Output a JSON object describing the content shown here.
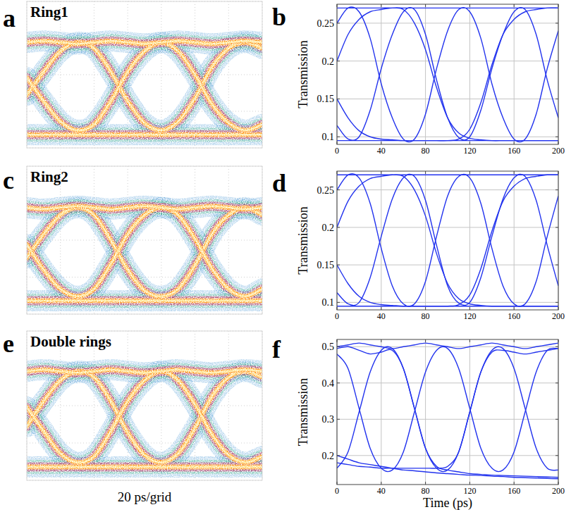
{
  "chart_data": [
    {
      "type": "eye_diagram",
      "panel_label": "a",
      "title": "Ring1",
      "x": [
        0,
        10,
        20,
        30,
        40,
        50,
        60,
        70,
        80,
        90,
        100,
        110,
        120,
        130,
        140
      ],
      "series": [
        {
          "values": [
            0.36,
            0.52,
            0.66,
            0.72,
            0.68,
            0.52,
            0.32,
            0.17,
            0.12,
            0.18,
            0.34,
            0.55,
            0.68,
            0.72,
            0.68
          ]
        },
        {
          "values": [
            0.48,
            0.32,
            0.18,
            0.12,
            0.16,
            0.32,
            0.52,
            0.66,
            0.72,
            0.66,
            0.5,
            0.3,
            0.17,
            0.12,
            0.16
          ]
        },
        {
          "values": [
            0.72,
            0.73,
            0.72,
            0.71,
            0.72,
            0.73,
            0.72,
            0.71,
            0.72,
            0.73,
            0.72,
            0.71,
            0.72,
            0.73,
            0.72
          ]
        },
        {
          "values": [
            0.09,
            0.09,
            0.09,
            0.09,
            0.09,
            0.09,
            0.09,
            0.09,
            0.09,
            0.09,
            0.09,
            0.09,
            0.09,
            0.09,
            0.09
          ]
        }
      ],
      "xlim": [
        0,
        140
      ],
      "ylim": [
        0,
        1
      ],
      "xticks": [
        0,
        20,
        40,
        60,
        80,
        100,
        120,
        140
      ],
      "yticks": [
        0,
        0.25,
        0.5,
        0.75,
        1
      ],
      "grid": true,
      "tick_labels": false,
      "color": "#ff9a1f"
    },
    {
      "type": "eye_diagram",
      "panel_label": "b",
      "ylabel": "Transmission",
      "x": [
        0,
        10,
        20,
        30,
        40,
        50,
        60,
        70,
        80,
        90,
        100,
        110,
        120,
        130,
        140,
        150,
        160,
        170,
        180,
        190,
        200
      ],
      "series": [
        {
          "values": [
            0.25,
            0.27,
            0.265,
            0.23,
            0.17,
            0.125,
            0.097,
            0.097,
            0.13,
            0.19,
            0.24,
            0.268,
            0.265,
            0.23,
            0.17,
            0.125,
            0.097,
            0.097,
            0.13,
            0.19,
            0.24
          ]
        },
        {
          "values": [
            0.115,
            0.097,
            0.1,
            0.135,
            0.19,
            0.235,
            0.265,
            0.268,
            0.235,
            0.175,
            0.125,
            0.099,
            0.1,
            0.135,
            0.19,
            0.235,
            0.265,
            0.268,
            0.235,
            0.175,
            0.125
          ]
        },
        {
          "values": [
            0.2,
            0.235,
            0.255,
            0.265,
            0.268,
            0.27,
            0.27,
            0.27,
            0.27,
            0.27,
            0.27,
            0.27,
            0.27,
            0.27,
            0.27,
            0.27,
            0.27,
            0.27,
            0.27,
            0.27,
            0.27
          ]
        },
        {
          "values": [
            0.15,
            0.125,
            0.108,
            0.1,
            0.097,
            0.096,
            0.095,
            0.095,
            0.095,
            0.095,
            0.095,
            0.095,
            0.095,
            0.095,
            0.095,
            0.095,
            0.095,
            0.095,
            0.095,
            0.095,
            0.095
          ]
        },
        {
          "values": [
            0.27,
            0.27,
            0.27,
            0.27,
            0.27,
            0.27,
            0.268,
            0.25,
            0.215,
            0.165,
            0.125,
            0.105,
            0.098,
            0.096,
            0.095,
            0.095,
            0.095,
            0.095,
            0.095,
            0.095,
            0.095
          ]
        },
        {
          "values": [
            0.095,
            0.095,
            0.095,
            0.095,
            0.095,
            0.095,
            0.095,
            0.095,
            0.095,
            0.095,
            0.095,
            0.097,
            0.11,
            0.145,
            0.195,
            0.235,
            0.255,
            0.265,
            0.268,
            0.27,
            0.27
          ]
        }
      ],
      "xlim": [
        0,
        200
      ],
      "ylim": [
        0.09,
        0.275
      ],
      "xticks": [
        0,
        40,
        80,
        120,
        160,
        200
      ],
      "yticks": [
        0.1,
        0.15,
        0.2,
        0.25
      ],
      "grid": true,
      "color": "#2233ee"
    },
    {
      "type": "eye_diagram",
      "panel_label": "c",
      "title": "Ring2",
      "x": [
        0,
        10,
        20,
        30,
        40,
        50,
        60,
        70,
        80,
        90,
        100,
        110,
        120,
        130,
        140
      ],
      "series": [
        {
          "values": [
            0.38,
            0.54,
            0.67,
            0.72,
            0.67,
            0.5,
            0.3,
            0.16,
            0.12,
            0.17,
            0.33,
            0.54,
            0.67,
            0.72,
            0.67
          ]
        },
        {
          "values": [
            0.47,
            0.3,
            0.17,
            0.12,
            0.17,
            0.34,
            0.54,
            0.67,
            0.72,
            0.67,
            0.51,
            0.31,
            0.17,
            0.12,
            0.17
          ]
        },
        {
          "values": [
            0.72,
            0.71,
            0.72,
            0.73,
            0.72,
            0.71,
            0.72,
            0.73,
            0.72,
            0.71,
            0.72,
            0.73,
            0.72,
            0.71,
            0.72
          ]
        },
        {
          "values": [
            0.09,
            0.09,
            0.09,
            0.09,
            0.09,
            0.09,
            0.09,
            0.09,
            0.09,
            0.09,
            0.09,
            0.09,
            0.09,
            0.09,
            0.09
          ]
        }
      ],
      "xlim": [
        0,
        140
      ],
      "ylim": [
        0,
        1
      ],
      "xticks": [
        0,
        20,
        40,
        60,
        80,
        100,
        120,
        140
      ],
      "yticks": [
        0,
        0.25,
        0.5,
        0.75,
        1
      ],
      "grid": true,
      "tick_labels": false,
      "color": "#ff9a1f"
    },
    {
      "type": "eye_diagram",
      "panel_label": "d",
      "ylabel": "Transmission",
      "x": [
        0,
        10,
        20,
        30,
        40,
        50,
        60,
        70,
        80,
        90,
        100,
        110,
        120,
        130,
        140,
        150,
        160,
        170,
        180,
        190,
        200
      ],
      "series": [
        {
          "values": [
            0.25,
            0.27,
            0.266,
            0.232,
            0.172,
            0.122,
            0.098,
            0.098,
            0.128,
            0.188,
            0.242,
            0.268,
            0.266,
            0.232,
            0.172,
            0.122,
            0.098,
            0.098,
            0.128,
            0.188,
            0.242
          ]
        },
        {
          "values": [
            0.113,
            0.098,
            0.1,
            0.133,
            0.188,
            0.238,
            0.266,
            0.268,
            0.236,
            0.176,
            0.122,
            0.099,
            0.1,
            0.133,
            0.188,
            0.238,
            0.266,
            0.268,
            0.236,
            0.176,
            0.122
          ]
        },
        {
          "values": [
            0.2,
            0.235,
            0.255,
            0.265,
            0.268,
            0.27,
            0.27,
            0.27,
            0.27,
            0.27,
            0.27,
            0.27,
            0.27,
            0.27,
            0.27,
            0.27,
            0.27,
            0.27,
            0.27,
            0.27,
            0.27
          ]
        },
        {
          "values": [
            0.15,
            0.125,
            0.108,
            0.1,
            0.097,
            0.096,
            0.095,
            0.095,
            0.095,
            0.095,
            0.095,
            0.095,
            0.095,
            0.095,
            0.095,
            0.095,
            0.095,
            0.095,
            0.095,
            0.095,
            0.095
          ]
        },
        {
          "values": [
            0.27,
            0.27,
            0.27,
            0.27,
            0.27,
            0.27,
            0.268,
            0.25,
            0.215,
            0.165,
            0.125,
            0.105,
            0.098,
            0.096,
            0.095,
            0.095,
            0.095,
            0.095,
            0.095,
            0.095,
            0.095
          ]
        },
        {
          "values": [
            0.095,
            0.095,
            0.095,
            0.095,
            0.095,
            0.095,
            0.095,
            0.095,
            0.095,
            0.095,
            0.095,
            0.097,
            0.11,
            0.145,
            0.195,
            0.235,
            0.255,
            0.265,
            0.268,
            0.27,
            0.27
          ]
        }
      ],
      "xlim": [
        0,
        200
      ],
      "ylim": [
        0.09,
        0.275
      ],
      "xticks": [
        0,
        40,
        80,
        120,
        160,
        200
      ],
      "yticks": [
        0.1,
        0.15,
        0.2,
        0.25
      ],
      "grid": true,
      "color": "#2233ee"
    },
    {
      "type": "eye_diagram",
      "panel_label": "e",
      "title": "Double rings",
      "xlabel": "20 ps/grid",
      "x": [
        0,
        10,
        20,
        30,
        40,
        50,
        60,
        70,
        80,
        90,
        100,
        110,
        120,
        130,
        140
      ],
      "series": [
        {
          "values": [
            0.36,
            0.53,
            0.67,
            0.73,
            0.69,
            0.53,
            0.32,
            0.17,
            0.12,
            0.18,
            0.35,
            0.56,
            0.69,
            0.73,
            0.69
          ]
        },
        {
          "values": [
            0.49,
            0.33,
            0.18,
            0.12,
            0.16,
            0.33,
            0.53,
            0.67,
            0.73,
            0.67,
            0.51,
            0.31,
            0.17,
            0.12,
            0.16
          ]
        },
        {
          "values": [
            0.73,
            0.74,
            0.73,
            0.72,
            0.73,
            0.74,
            0.73,
            0.72,
            0.73,
            0.74,
            0.73,
            0.72,
            0.73,
            0.74,
            0.73
          ]
        },
        {
          "values": [
            0.09,
            0.09,
            0.09,
            0.09,
            0.09,
            0.09,
            0.09,
            0.09,
            0.09,
            0.09,
            0.09,
            0.09,
            0.09,
            0.09,
            0.09
          ]
        }
      ],
      "xlim": [
        0,
        140
      ],
      "ylim": [
        0,
        1
      ],
      "xticks": [
        0,
        20,
        40,
        60,
        80,
        100,
        120,
        140
      ],
      "yticks": [
        0,
        0.25,
        0.5,
        0.75,
        1
      ],
      "grid": true,
      "tick_labels": false,
      "color": "#ff9a1f"
    },
    {
      "type": "eye_diagram",
      "panel_label": "f",
      "ylabel": "Transmission",
      "xlabel": "Time (ps)",
      "x": [
        0,
        10,
        20,
        30,
        40,
        50,
        60,
        70,
        80,
        90,
        100,
        110,
        120,
        130,
        140,
        150,
        160,
        170,
        180,
        190,
        200
      ],
      "series": [
        {
          "values": [
            0.165,
            0.21,
            0.32,
            0.43,
            0.49,
            0.495,
            0.44,
            0.33,
            0.22,
            0.165,
            0.16,
            0.21,
            0.32,
            0.43,
            0.49,
            0.495,
            0.44,
            0.33,
            0.22,
            0.165,
            0.16
          ]
        },
        {
          "values": [
            0.48,
            0.44,
            0.33,
            0.22,
            0.165,
            0.16,
            0.21,
            0.32,
            0.43,
            0.49,
            0.495,
            0.44,
            0.33,
            0.22,
            0.165,
            0.16,
            0.21,
            0.32,
            0.43,
            0.49,
            0.495
          ]
        },
        {
          "values": [
            0.5,
            0.505,
            0.51,
            0.505,
            0.5,
            0.495,
            0.5,
            0.505,
            0.51,
            0.505,
            0.5,
            0.495,
            0.5,
            0.505,
            0.51,
            0.505,
            0.5,
            0.495,
            0.5,
            0.505,
            0.51
          ]
        },
        {
          "values": [
            0.2,
            0.19,
            0.18,
            0.175,
            0.17,
            0.165,
            0.16,
            0.158,
            0.155,
            0.152,
            0.15,
            0.148,
            0.146,
            0.145,
            0.143,
            0.142,
            0.14,
            0.139,
            0.138,
            0.137,
            0.136
          ]
        },
        {
          "values": [
            0.495,
            0.5,
            0.49,
            0.48,
            0.485,
            0.49,
            0.44,
            0.33,
            0.22,
            0.17,
            0.16,
            0.155,
            0.15,
            0.148,
            0.146,
            0.145,
            0.144,
            0.143,
            0.142,
            0.141,
            0.14
          ]
        },
        {
          "values": [
            0.18,
            0.175,
            0.17,
            0.168,
            0.165,
            0.165,
            0.165,
            0.165,
            0.165,
            0.165,
            0.17,
            0.21,
            0.32,
            0.43,
            0.485,
            0.49,
            0.485,
            0.48,
            0.485,
            0.49,
            0.495
          ]
        }
      ],
      "xlim": [
        0,
        200
      ],
      "ylim": [
        0.12,
        0.52
      ],
      "xticks": [
        0,
        40,
        80,
        120,
        160,
        200
      ],
      "yticks": [
        0.2,
        0.3,
        0.4,
        0.5
      ],
      "grid": true,
      "color": "#2233ee"
    }
  ]
}
